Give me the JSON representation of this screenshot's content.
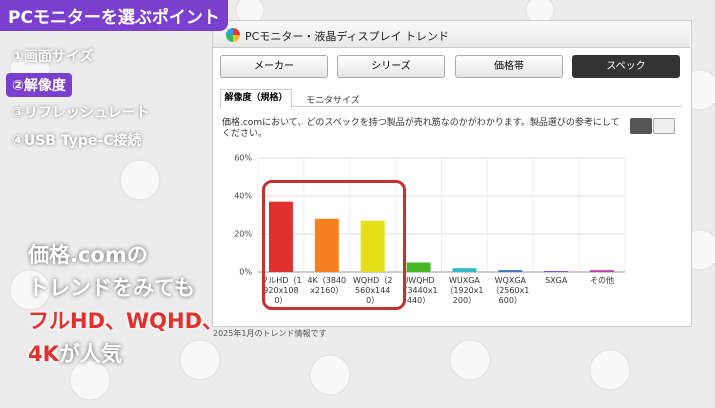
{
  "overlay": {
    "heading": "PCモニターを選ぶポイント",
    "points": [
      "①画面サイズ",
      "②解像度",
      "③リフレッシュレート",
      "④USB Type-C接続"
    ],
    "message": [
      "価格.comの",
      "トレンドをみても",
      "フルHD、WQHD、"
    ],
    "last_red": "4K",
    "last_rest": "が人気"
  },
  "panel": {
    "title": "PCモニター・液晶ディスプレイ トレンド",
    "tabs": [
      "メーカー",
      "シリーズ",
      "価格帯",
      "スペック"
    ],
    "subtabs": [
      "解像度（規格）",
      "モニタサイズ"
    ],
    "description": "価格.comにおいて、どのスペックを持つ製品が売れ筋なのかがわかります。製品選びの参考にしてください。",
    "footer": "2025年1月のトレンド情報です"
  },
  "chart_data": {
    "type": "bar",
    "categories": [
      "フルHD（1920x1080）",
      "4K（3840x2160）",
      "WQHD（2560x1440）",
      "UWQHD（3440x1440）",
      "WUXGA（1920x1200）",
      "WQXGA（2560x1600）",
      "SXGA",
      "その他"
    ],
    "values": [
      37,
      28,
      27,
      5,
      2,
      1,
      0.5,
      1
    ],
    "colors": [
      "#e0312f",
      "#f5821f",
      "#e6df1c",
      "#45b823",
      "#35b8c8",
      "#3a78c8",
      "#7d4cc8",
      "#c540a8"
    ],
    "ylim": [
      0,
      60
    ],
    "yticks": [
      {
        "value": 0,
        "label": "0%"
      },
      {
        "value": 20,
        "label": "20%"
      },
      {
        "value": 40,
        "label": "40%"
      },
      {
        "value": 60,
        "label": "60%"
      }
    ],
    "grid": true
  }
}
